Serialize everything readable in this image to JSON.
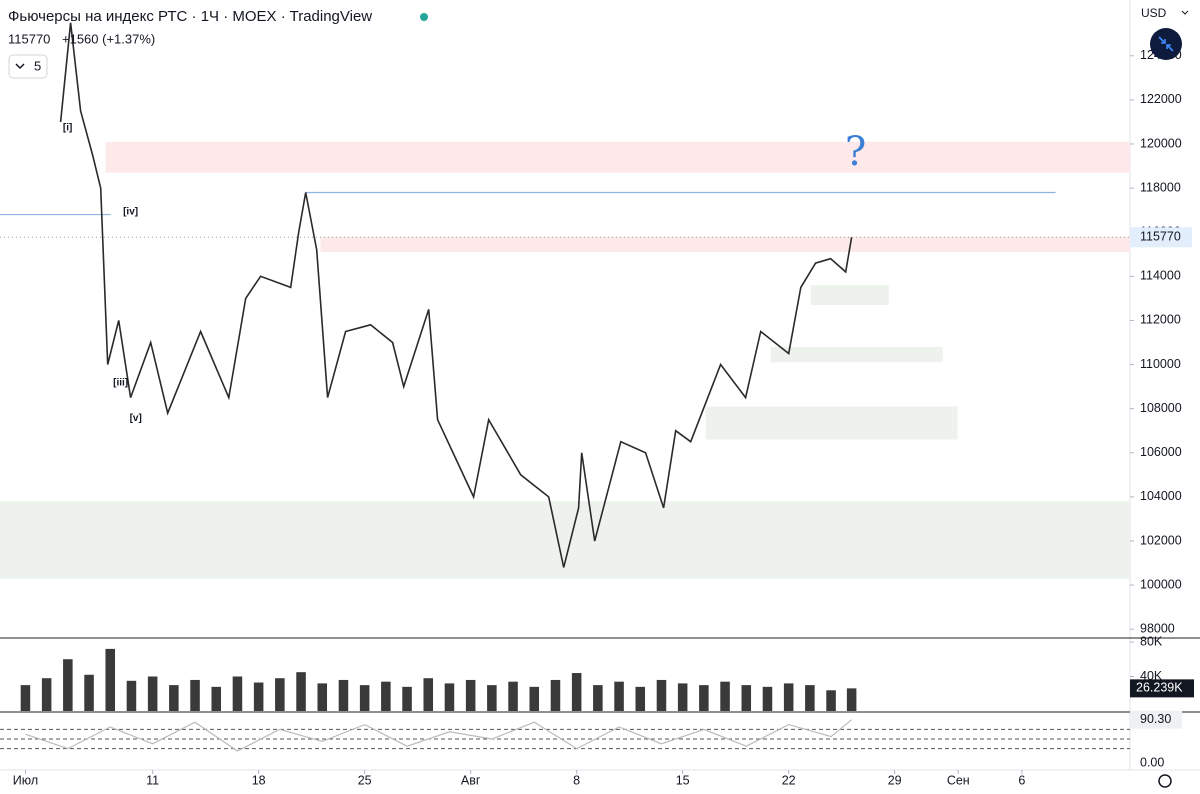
{
  "header": {
    "title": "Фьючерсы на индекс РТС · 1Ч · MOEX · TradingView",
    "change": "+1560 (+1.37%)",
    "interval_menu": "5",
    "currency": "USD"
  },
  "chart_data": {
    "type": "line",
    "color": "#2a2a2a",
    "x": [
      1.66,
      2.13,
      2.6,
      3.17,
      3.55,
      3.88,
      4.4,
      4.96,
      5.91,
      6.71,
      8.26,
      9.59,
      10.39,
      11.09,
      12.51,
      12.89,
      13.22,
      13.74,
      14.25,
      15.1,
      16.28,
      17.32,
      17.84,
      19.02,
      19.44,
      21.14,
      21.85,
      23.36,
      24.68,
      25.39,
      26.09,
      26.24,
      26.85,
      28.08,
      29.25,
      30.1,
      30.67,
      31.38,
      32.79,
      33.97,
      34.68,
      36.0,
      36.57,
      37.27,
      37.98,
      38.69,
      38.97
    ],
    "values": [
      121000,
      125500,
      121500,
      119500,
      118000,
      110000,
      112000,
      108500,
      111000,
      107800,
      111500,
      108500,
      113000,
      114000,
      113500,
      116000,
      117800,
      115200,
      108500,
      111500,
      111800,
      111000,
      109000,
      112500,
      107500,
      104000,
      107500,
      105000,
      104000,
      100800,
      103500,
      106000,
      102000,
      106500,
      106000,
      103500,
      107000,
      106500,
      110000,
      108500,
      111500,
      110500,
      113500,
      114600,
      114800,
      114200,
      115770
    ],
    "xlim": [
      -1.2,
      52.1
    ],
    "xticks": [
      {
        "value": 0,
        "label": "Июл"
      },
      {
        "value": 6,
        "label": "11"
      },
      {
        "value": 11,
        "label": "18"
      },
      {
        "value": 16,
        "label": "25"
      },
      {
        "value": 21,
        "label": "Авг"
      },
      {
        "value": 26,
        "label": "8"
      },
      {
        "value": 31,
        "label": "15"
      },
      {
        "value": 36,
        "label": "22"
      },
      {
        "value": 41,
        "label": "29"
      },
      {
        "value": 44,
        "label": "Сен"
      },
      {
        "value": 47,
        "label": "6"
      }
    ],
    "ylim": [
      97600,
      126530
    ],
    "yticks": [
      98000,
      100000,
      102000,
      104000,
      106000,
      108000,
      110000,
      112000,
      114000,
      116000,
      118000,
      120000,
      122000,
      124000
    ],
    "zones": [
      {
        "x": [
          3.78,
          52.1
        ],
        "y": [
          118700,
          120100
        ],
        "color": "#fde8ea"
      },
      {
        "x": [
          13.92,
          52.1
        ],
        "y": [
          115100,
          115800
        ],
        "color": "#fde8ea"
      },
      {
        "x": [
          37.04,
          40.72
        ],
        "y": [
          112700,
          113600
        ],
        "color": "#edf3ec"
      },
      {
        "x": [
          35.15,
          43.26
        ],
        "y": [
          110100,
          110800
        ],
        "color": "#edf3ec"
      },
      {
        "x": [
          32.08,
          43.97
        ],
        "y": [
          106600,
          108100
        ],
        "color": "#edf3ec"
      },
      {
        "x": [
          -1.2,
          52.1
        ],
        "y": [
          100300,
          103800
        ],
        "color": "#edf3ec"
      }
    ],
    "levels": [
      {
        "x": [
          13.22,
          48.59
        ],
        "y": 117800,
        "color": "#8fb4e3"
      },
      {
        "x": [
          -1.2,
          4.02
        ],
        "y": 116800,
        "color": "#8fb4e3"
      }
    ],
    "annotations": [
      {
        "text": "[i]",
        "x": 1.99,
        "y": 120725
      },
      {
        "text": "[iv]",
        "x": 4.96,
        "y": 116920
      },
      {
        "text": "[iii]",
        "x": 4.49,
        "y": 109160
      },
      {
        "text": "[v]",
        "x": 5.2,
        "y": 107570
      },
      {
        "text": "?",
        "x": 39.16,
        "y": 119500
      }
    ],
    "volume": {
      "color": "#3a3a3a",
      "x": [
        0,
        1,
        2,
        3,
        4,
        5,
        6,
        7,
        8,
        9,
        10,
        11,
        12,
        13,
        14,
        15,
        16,
        17,
        18,
        19,
        20,
        21,
        22,
        23,
        24,
        25,
        26,
        27,
        28,
        29,
        30,
        31,
        32,
        33,
        34,
        35,
        36,
        37,
        38,
        38.97
      ],
      "values": [
        30000,
        38000,
        60000,
        42000,
        72000,
        35000,
        40000,
        30000,
        36000,
        28000,
        40000,
        33000,
        38000,
        45000,
        32000,
        36000,
        30000,
        34000,
        28000,
        38000,
        32000,
        36000,
        30000,
        34000,
        28000,
        36000,
        44000,
        30000,
        34000,
        28000,
        36000,
        32000,
        30000,
        34000,
        30000,
        28000,
        32000,
        30000,
        24000,
        26239
      ],
      "value_labels": {
        "39": "26.239K"
      },
      "ylim": [
        0,
        82300
      ],
      "yticks": [
        {
          "value": 40000,
          "label": "40K"
        },
        {
          "value": 80000,
          "label": "80K"
        }
      ]
    },
    "oscillator": {
      "color": "#bbbbbb",
      "x": [
        0,
        2,
        4,
        6,
        8,
        10,
        12,
        14,
        16,
        18,
        20,
        22,
        24,
        26,
        28,
        30,
        32,
        34,
        36,
        38,
        38.97
      ],
      "values": [
        60,
        30,
        75,
        40,
        85,
        25,
        70,
        45,
        80,
        35,
        65,
        50,
        85,
        30,
        75,
        40,
        70,
        35,
        80,
        55,
        90.3
      ],
      "value_labels": {
        "20": "90.30"
      },
      "levels": [
        30,
        50,
        70
      ],
      "ylim": [
        0,
        100
      ],
      "yticks": [
        {
          "value": 0,
          "label": "0.00"
        }
      ]
    }
  }
}
